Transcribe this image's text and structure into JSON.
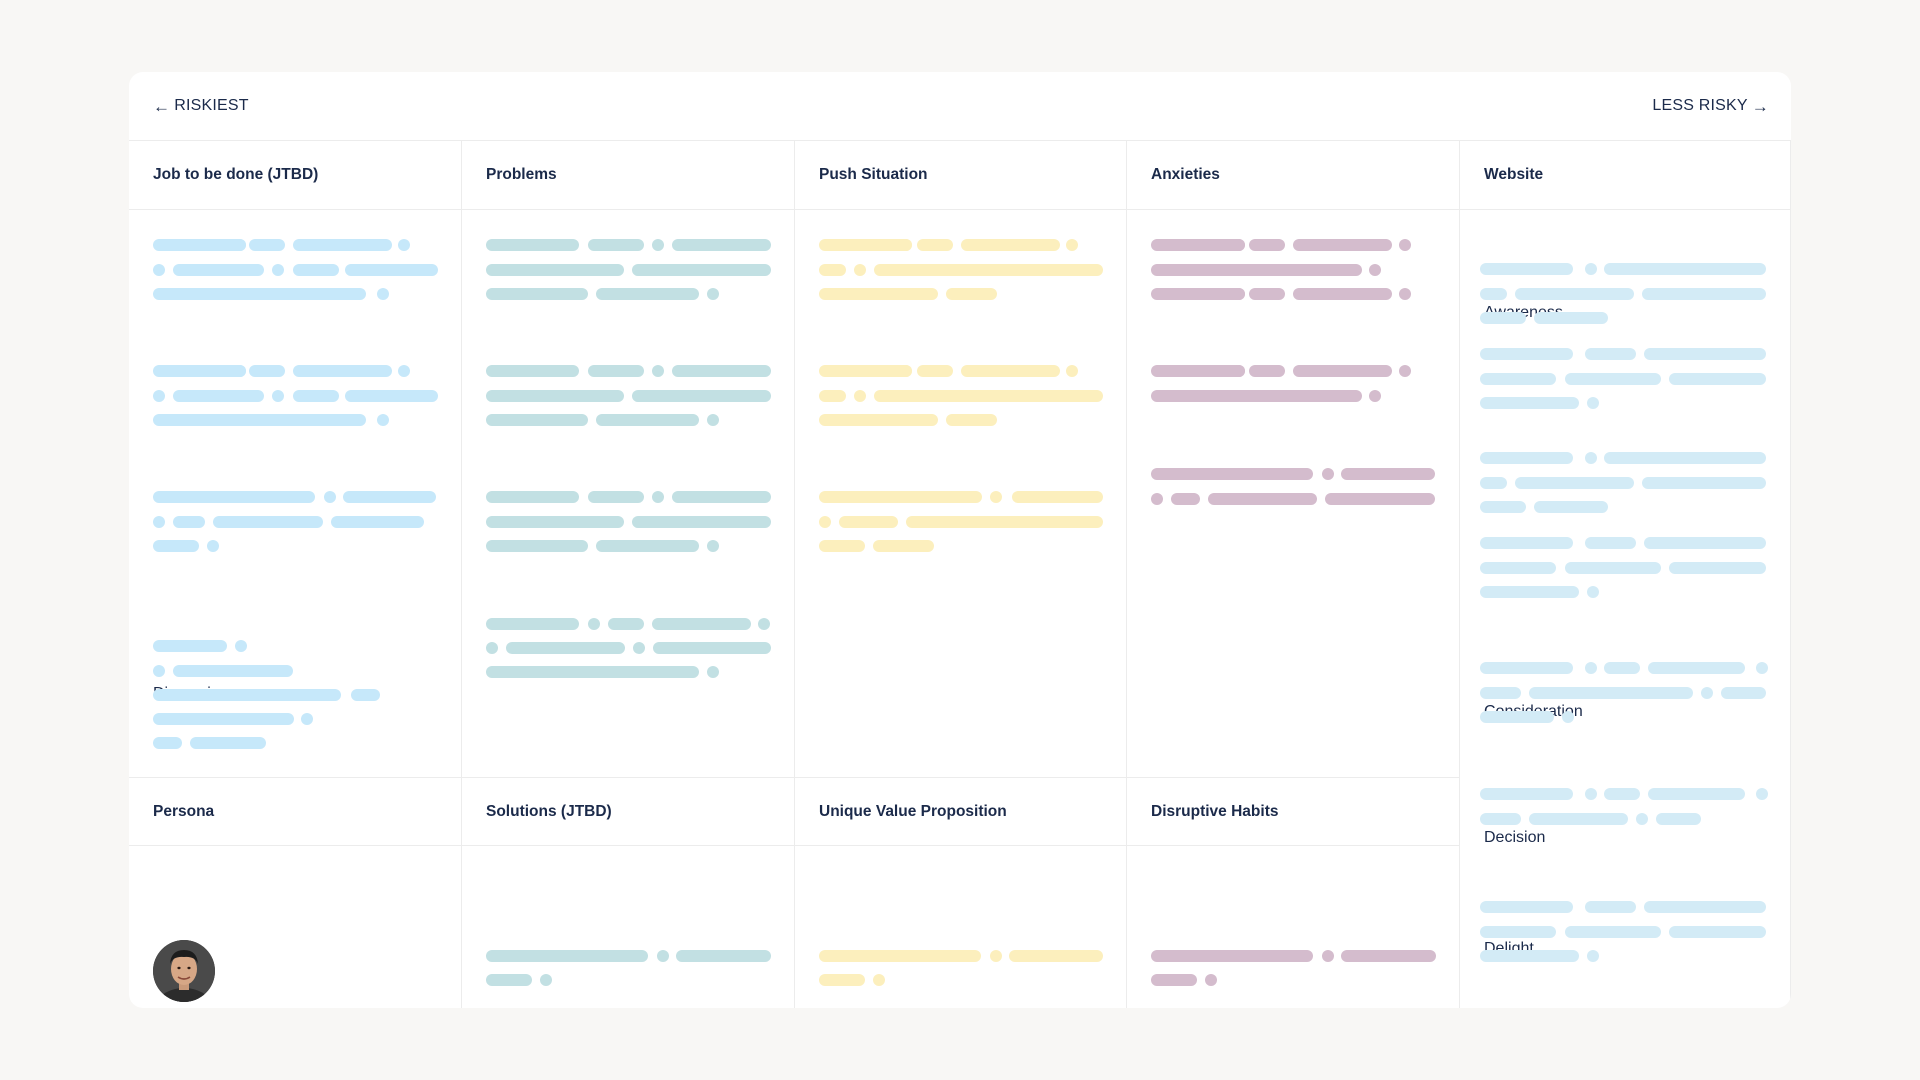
{
  "nav": {
    "left_label": "RISKIEST",
    "right_label": "LESS RISKY"
  },
  "colors": {
    "blue": "#c6e8fa",
    "teal": "#c2e0e3",
    "yellow": "#fcefbd",
    "mauve": "#d4bccd",
    "website": "#d3ebf6"
  },
  "columns": [
    {
      "title": "Job to be done (JTBD)",
      "lower_title": "Persona",
      "dimensions_label": "Dimensions:"
    },
    {
      "title": "Problems",
      "lower_title": "Solutions (JTBD)"
    },
    {
      "title": "Push Situation",
      "lower_title": "Unique Value Proposition"
    },
    {
      "title": "Anxieties",
      "lower_title": "Disruptive Habits"
    },
    {
      "title": "Website",
      "stages": [
        "Awareness",
        "Consideration",
        "Decision",
        "Delight"
      ]
    }
  ],
  "persona": {
    "avatar_icon": "person-avatar"
  }
}
